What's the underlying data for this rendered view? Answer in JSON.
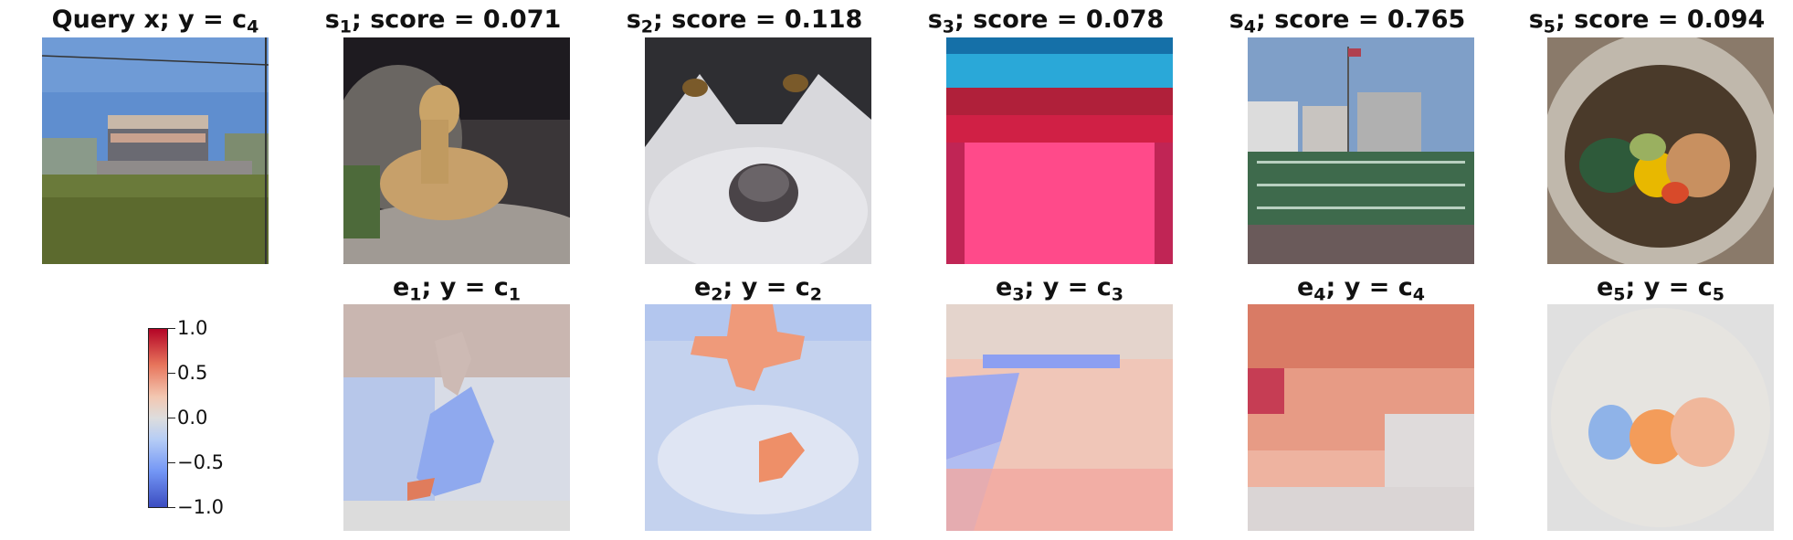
{
  "query": {
    "title_main": "Query x; y = c",
    "title_sub": "4"
  },
  "samples": [
    {
      "prefix": "s",
      "index": "1",
      "rest": "; score = 0.071"
    },
    {
      "prefix": "s",
      "index": "2",
      "rest": "; score = 0.118"
    },
    {
      "prefix": "s",
      "index": "3",
      "rest": "; score = 0.078"
    },
    {
      "prefix": "s",
      "index": "4",
      "rest": "; score = 0.765"
    },
    {
      "prefix": "s",
      "index": "5",
      "rest": "; score = 0.094"
    }
  ],
  "explanations": [
    {
      "prefix": "e",
      "index": "1",
      "mid": "; y = c",
      "cls": "1"
    },
    {
      "prefix": "e",
      "index": "2",
      "mid": "; y = c",
      "cls": "2"
    },
    {
      "prefix": "e",
      "index": "3",
      "mid": "; y = c",
      "cls": "3"
    },
    {
      "prefix": "e",
      "index": "4",
      "mid": "; y = c",
      "cls": "4"
    },
    {
      "prefix": "e",
      "index": "5",
      "mid": "; y = c",
      "cls": "5"
    }
  ],
  "colorbar": {
    "ticks": [
      "1.0",
      "0.5",
      "0.0",
      "−0.5",
      "−1.0"
    ],
    "colors": {
      "high": "#b40426",
      "mid": "#dddddd",
      "low": "#3b4cc0"
    }
  }
}
